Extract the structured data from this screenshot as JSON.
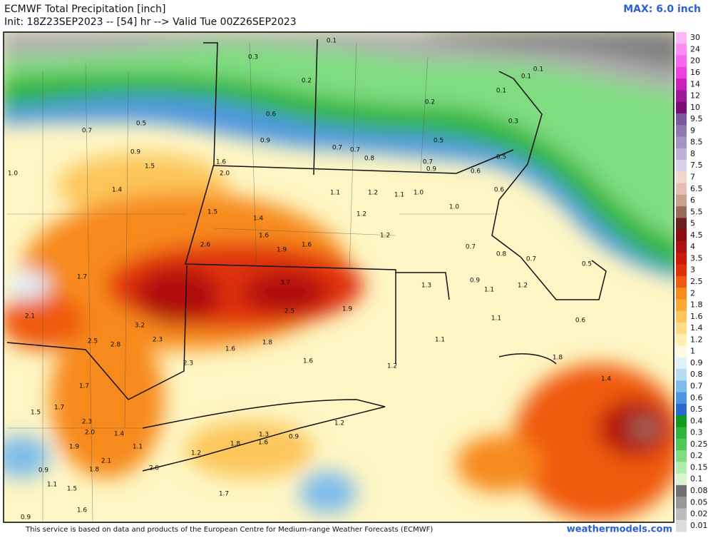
{
  "header": {
    "title": "ECMWF Total Precipitation [inch]",
    "init": "Init: 18Z23SEP2023 -- [54] hr --> Valid Tue 00Z26SEP2023",
    "max": "MAX: 6.0 inch"
  },
  "colorbar": {
    "levels": [
      {
        "label": "30",
        "color": "#fdb6fb"
      },
      {
        "label": "24",
        "color": "#fc8df7"
      },
      {
        "label": "20",
        "color": "#f865ef"
      },
      {
        "label": "16",
        "color": "#ee3fdf"
      },
      {
        "label": "14",
        "color": "#cc22bd"
      },
      {
        "label": "12",
        "color": "#a2169a"
      },
      {
        "label": "10",
        "color": "#7b0d78"
      },
      {
        "label": "9.5",
        "color": "#7a5a9c"
      },
      {
        "label": "9",
        "color": "#8d78b0"
      },
      {
        "label": "8.5",
        "color": "#a493c4"
      },
      {
        "label": "8",
        "color": "#beb2d6"
      },
      {
        "label": "7.5",
        "color": "#d8d0e6"
      },
      {
        "label": "7",
        "color": "#f1d8cf"
      },
      {
        "label": "6.5",
        "color": "#e5c0b2"
      },
      {
        "label": "6",
        "color": "#c9a090"
      },
      {
        "label": "5.5",
        "color": "#9a6b5c"
      },
      {
        "label": "5",
        "color": "#6a2020"
      },
      {
        "label": "4.5",
        "color": "#8c0d0d"
      },
      {
        "label": "4",
        "color": "#b00f0f"
      },
      {
        "label": "3.5",
        "color": "#cc1a0a"
      },
      {
        "label": "3",
        "color": "#e0300a"
      },
      {
        "label": "2.5",
        "color": "#f05a10"
      },
      {
        "label": "2",
        "color": "#f78a1a"
      },
      {
        "label": "1.8",
        "color": "#fba830"
      },
      {
        "label": "1.6",
        "color": "#fcc65a"
      },
      {
        "label": "1.4",
        "color": "#fddc85"
      },
      {
        "label": "1.2",
        "color": "#fef0b0"
      },
      {
        "label": "1",
        "color": "#fffbe0"
      },
      {
        "label": "0.9",
        "color": "#dff2fb"
      },
      {
        "label": "0.8",
        "color": "#b5dcf5"
      },
      {
        "label": "0.7",
        "color": "#7fbceb"
      },
      {
        "label": "0.6",
        "color": "#4d95e0"
      },
      {
        "label": "0.5",
        "color": "#2a6ad0"
      },
      {
        "label": "0.4",
        "color": "#109a20"
      },
      {
        "label": "0.3",
        "color": "#2db43a"
      },
      {
        "label": "0.25",
        "color": "#50c858"
      },
      {
        "label": "0.2",
        "color": "#7fdc80"
      },
      {
        "label": "0.15",
        "color": "#b0eeaa"
      },
      {
        "label": "0.1",
        "color": "#d8f5d0"
      },
      {
        "label": "0.08",
        "color": "#707070"
      },
      {
        "label": "0.05",
        "color": "#989898"
      },
      {
        "label": "0.02",
        "color": "#bcbcbc"
      },
      {
        "label": "0.01",
        "color": "#dcdcdc"
      }
    ]
  },
  "map": {
    "labels": [
      "0.3",
      "0.1",
      "0.2",
      "0.1",
      "0.1",
      "0.1",
      "0.6",
      "0.2",
      "0.5",
      "0.7",
      "0.9",
      "0.9",
      "0.5",
      "0.3",
      "0.7",
      "0.7",
      "0.8",
      "0.7",
      "0.9",
      "0.6",
      "0.5",
      "1.0",
      "1.5",
      "1.4",
      "1.6",
      "2.0",
      "1.5",
      "1.1",
      "1.2",
      "1.1",
      "1.0",
      "1.4",
      "1.2",
      "1.0",
      "0.6",
      "2.6",
      "1.6",
      "1.9",
      "1.6",
      "1.2",
      "1.7",
      "3.7",
      "2.5",
      "1.9",
      "1.3",
      "0.9",
      "1.1",
      "1.2",
      "0.7",
      "0.8",
      "0.7",
      "0.5",
      "2.1",
      "3.2",
      "2.5",
      "2.8",
      "2.3",
      "1.6",
      "1.8",
      "1.6",
      "2.3",
      "1.2",
      "1.1",
      "1.1",
      "0.6",
      "1.8",
      "1.4",
      "1.7",
      "1.5",
      "1.7",
      "2.3",
      "2.0",
      "1.4",
      "1.1",
      "1.9",
      "2.1",
      "1.8",
      "2.0",
      "0.9",
      "1.1",
      "1.5",
      "1.2",
      "1.8",
      "1.3",
      "1.6",
      "0.9",
      "1.2",
      "1.7",
      "1.6",
      "0.9"
    ]
  },
  "footer": {
    "credit": "This service is based on data and products of the European Centre for Medium-range Weather Forecasts (ECMWF)",
    "site": "weathermodels.com"
  }
}
